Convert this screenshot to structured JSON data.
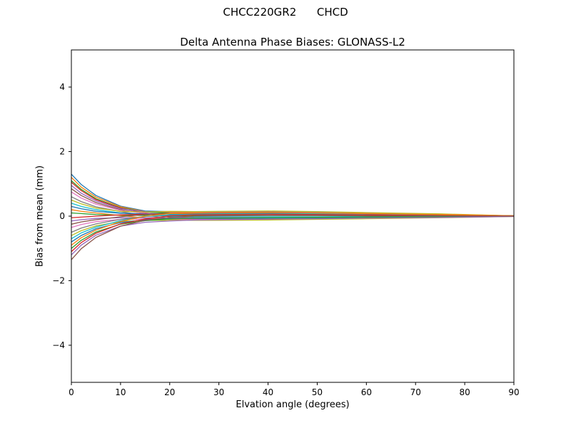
{
  "chart_data": {
    "type": "line",
    "title": "CHCC220GR2      CHCD",
    "subtitle": "Delta Antenna Phase Biases: GLONASS-L2",
    "xlabel": "Elvation angle (degrees)",
    "ylabel": "Bias from mean (mm)",
    "xlim": [
      0,
      90
    ],
    "ylim": [
      -5.15,
      5.15
    ],
    "x_ticks": [
      0,
      10,
      20,
      30,
      40,
      50,
      60,
      70,
      80,
      90
    ],
    "y_ticks": [
      -4,
      -2,
      0,
      2,
      4
    ],
    "grid": false,
    "legend": "none",
    "background": "#ffffff",
    "axes_color": "#000000",
    "palette": [
      "#1f77b4",
      "#ff7f0e",
      "#2ca02c",
      "#d62728",
      "#9467bd",
      "#8c564b",
      "#e377c2",
      "#7f7f7f",
      "#bcbd22",
      "#17becf"
    ],
    "x": [
      0,
      2,
      5,
      10,
      15,
      20,
      25,
      30,
      40,
      50,
      60,
      75,
      90
    ],
    "series": [
      {
        "name": "line-01",
        "values": [
          1.3,
          0.98,
          0.64,
          0.31,
          0.16,
          0.14,
          0.12,
          0.12,
          0.12,
          0.1,
          0.08,
          0.05,
          0.01
        ]
      },
      {
        "name": "line-02",
        "values": [
          1.2,
          0.9,
          0.59,
          0.29,
          0.14,
          0.12,
          0.11,
          0.1,
          0.1,
          0.08,
          0.07,
          0.04,
          0.01
        ]
      },
      {
        "name": "line-03",
        "values": [
          1.1,
          0.83,
          0.54,
          0.26,
          0.13,
          0.09,
          0.08,
          0.08,
          0.07,
          0.06,
          0.05,
          0.03,
          0.0
        ]
      },
      {
        "name": "line-04",
        "values": [
          1.05,
          0.79,
          0.51,
          0.25,
          0.1,
          0.02,
          -0.02,
          -0.03,
          -0.03,
          -0.03,
          -0.02,
          -0.01,
          0.0
        ]
      },
      {
        "name": "line-05",
        "values": [
          0.95,
          0.71,
          0.47,
          0.23,
          0.14,
          0.14,
          0.13,
          0.13,
          0.14,
          0.12,
          0.1,
          0.06,
          0.01
        ]
      },
      {
        "name": "line-06",
        "values": [
          0.85,
          0.64,
          0.42,
          0.2,
          0.08,
          -0.02,
          -0.05,
          -0.06,
          -0.06,
          -0.05,
          -0.04,
          -0.02,
          0.0
        ]
      },
      {
        "name": "line-07",
        "values": [
          0.75,
          0.56,
          0.37,
          0.18,
          0.09,
          0.06,
          0.05,
          0.04,
          0.04,
          0.03,
          0.03,
          0.02,
          0.0
        ]
      },
      {
        "name": "line-08",
        "values": [
          0.6,
          0.45,
          0.29,
          0.14,
          0.02,
          -0.06,
          -0.08,
          -0.09,
          -0.08,
          -0.07,
          -0.05,
          -0.03,
          0.0
        ]
      },
      {
        "name": "line-09",
        "values": [
          0.5,
          0.38,
          0.25,
          0.15,
          0.13,
          0.15,
          0.14,
          0.15,
          0.16,
          0.14,
          0.11,
          0.07,
          0.01
        ]
      },
      {
        "name": "line-10",
        "values": [
          0.4,
          0.3,
          0.2,
          0.1,
          0.03,
          0.0,
          -0.02,
          -0.02,
          -0.02,
          -0.02,
          -0.01,
          -0.01,
          0.0
        ]
      },
      {
        "name": "line-11",
        "values": [
          0.3,
          0.23,
          0.15,
          0.09,
          0.07,
          0.07,
          0.06,
          0.06,
          0.06,
          0.05,
          0.04,
          0.03,
          0.0
        ]
      },
      {
        "name": "line-12",
        "values": [
          0.2,
          0.15,
          0.1,
          0.02,
          -0.06,
          -0.1,
          -0.11,
          -0.11,
          -0.1,
          -0.09,
          -0.07,
          -0.04,
          0.0
        ]
      },
      {
        "name": "line-13",
        "values": [
          0.1,
          0.08,
          0.05,
          0.03,
          0.02,
          0.02,
          0.02,
          0.02,
          0.02,
          0.02,
          0.01,
          0.01,
          0.0
        ]
      },
      {
        "name": "line-14",
        "values": [
          -0.05,
          -0.03,
          0.0,
          0.04,
          0.06,
          0.08,
          0.08,
          0.08,
          0.08,
          0.07,
          0.06,
          0.03,
          0.0
        ]
      },
      {
        "name": "line-15",
        "values": [
          -0.15,
          -0.11,
          -0.07,
          -0.05,
          -0.05,
          -0.05,
          -0.05,
          -0.05,
          -0.05,
          -0.04,
          -0.03,
          -0.02,
          0.0
        ]
      },
      {
        "name": "line-16",
        "values": [
          -0.25,
          -0.18,
          -0.11,
          -0.02,
          0.05,
          0.08,
          0.09,
          0.1,
          0.1,
          0.09,
          0.07,
          0.04,
          0.01
        ]
      },
      {
        "name": "line-17",
        "values": [
          -0.35,
          -0.26,
          -0.17,
          -0.1,
          -0.09,
          -0.09,
          -0.09,
          -0.1,
          -0.09,
          -0.08,
          -0.06,
          -0.04,
          0.0
        ]
      },
      {
        "name": "line-18",
        "values": [
          -0.5,
          -0.37,
          -0.24,
          -0.1,
          -0.01,
          0.03,
          0.04,
          0.04,
          0.05,
          0.04,
          0.03,
          0.02,
          0.0
        ]
      },
      {
        "name": "line-19",
        "values": [
          -0.6,
          -0.45,
          -0.3,
          -0.17,
          -0.13,
          -0.13,
          -0.13,
          -0.13,
          -0.12,
          -0.1,
          -0.08,
          -0.05,
          -0.01
        ]
      },
      {
        "name": "line-20",
        "values": [
          -0.7,
          -0.52,
          -0.34,
          -0.14,
          -0.01,
          0.04,
          0.06,
          0.07,
          0.08,
          0.07,
          0.05,
          0.03,
          0.0
        ]
      },
      {
        "name": "line-21",
        "values": [
          -0.8,
          -0.6,
          -0.39,
          -0.2,
          -0.11,
          -0.08,
          -0.07,
          -0.07,
          -0.06,
          -0.05,
          -0.04,
          -0.02,
          0.0
        ]
      },
      {
        "name": "line-22",
        "values": [
          -0.9,
          -0.67,
          -0.43,
          -0.17,
          0.0,
          0.08,
          0.1,
          0.11,
          0.12,
          0.1,
          0.08,
          0.05,
          0.01
        ]
      },
      {
        "name": "line-23",
        "values": [
          -1.0,
          -0.75,
          -0.49,
          -0.25,
          -0.14,
          -0.09,
          -0.06,
          -0.06,
          -0.05,
          -0.04,
          -0.03,
          -0.02,
          0.0
        ]
      },
      {
        "name": "line-24",
        "values": [
          -1.1,
          -0.82,
          -0.53,
          -0.24,
          -0.09,
          0.01,
          0.04,
          0.05,
          0.06,
          0.05,
          0.04,
          0.02,
          0.0
        ]
      },
      {
        "name": "line-25",
        "values": [
          -1.2,
          -0.9,
          -0.59,
          -0.31,
          -0.19,
          -0.15,
          -0.12,
          -0.11,
          -0.09,
          -0.08,
          -0.06,
          -0.04,
          -0.01
        ]
      },
      {
        "name": "line-26",
        "values": [
          -1.35,
          -1.01,
          -0.66,
          -0.31,
          -0.13,
          -0.04,
          0.0,
          0.01,
          0.02,
          0.02,
          0.01,
          0.01,
          0.0
        ]
      }
    ]
  }
}
